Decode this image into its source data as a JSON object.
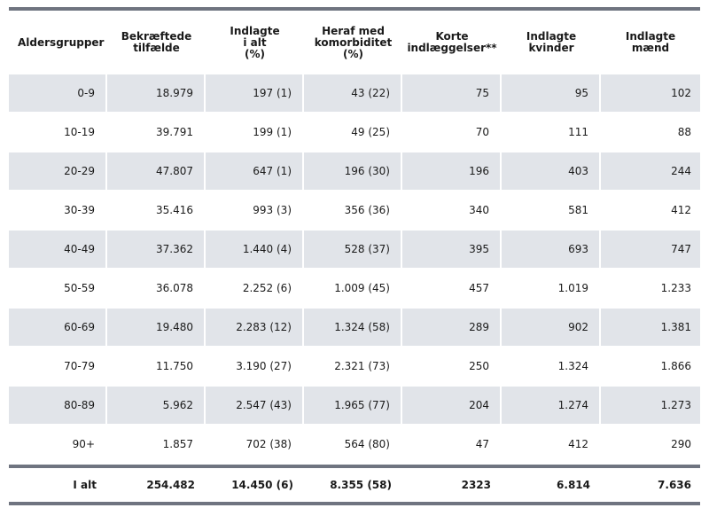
{
  "headers": [
    [
      "Aldersgrupper"
    ],
    [
      "Bekræftede",
      "tilfælde"
    ],
    [
      "Indlagte",
      "i alt",
      "(%)"
    ],
    [
      "Heraf med",
      "komorbiditet",
      "(%)"
    ],
    [
      "Korte",
      "indlæggelser**"
    ],
    [
      "Indlagte",
      "kvinder"
    ],
    [
      "Indlagte",
      "mænd"
    ]
  ],
  "rows": [
    [
      "0-9",
      "18.979",
      "197 (1)",
      "43 (22)",
      "75",
      "95",
      "102"
    ],
    [
      "10-19",
      "39.791",
      "199 (1)",
      "49 (25)",
      "70",
      "111",
      "88"
    ],
    [
      "20-29",
      "47.807",
      "647 (1)",
      "196 (30)",
      "196",
      "403",
      "244"
    ],
    [
      "30-39",
      "35.416",
      "993 (3)",
      "356 (36)",
      "340",
      "581",
      "412"
    ],
    [
      "40-49",
      "37.362",
      "1.440 (4)",
      "528 (37)",
      "395",
      "693",
      "747"
    ],
    [
      "50-59",
      "36.078",
      "2.252 (6)",
      "1.009 (45)",
      "457",
      "1.019",
      "1.233"
    ],
    [
      "60-69",
      "19.480",
      "2.283 (12)",
      "1.324 (58)",
      "289",
      "902",
      "1.381"
    ],
    [
      "70-79",
      "11.750",
      "3.190 (27)",
      "2.321 (73)",
      "250",
      "1.324",
      "1.866"
    ],
    [
      "80-89",
      "5.962",
      "2.547 (43)",
      "1.965 (77)",
      "204",
      "1.274",
      "1.273"
    ],
    [
      "90+",
      "1.857",
      "702 (38)",
      "564 (80)",
      "47",
      "412",
      "290"
    ]
  ],
  "total": [
    "I alt",
    "254.482",
    "14.450 (6)",
    "8.355 (58)",
    "2323",
    "6.814",
    "7.636"
  ],
  "colors": {
    "rule": "#6f7480",
    "shade": "#e1e4e9"
  }
}
